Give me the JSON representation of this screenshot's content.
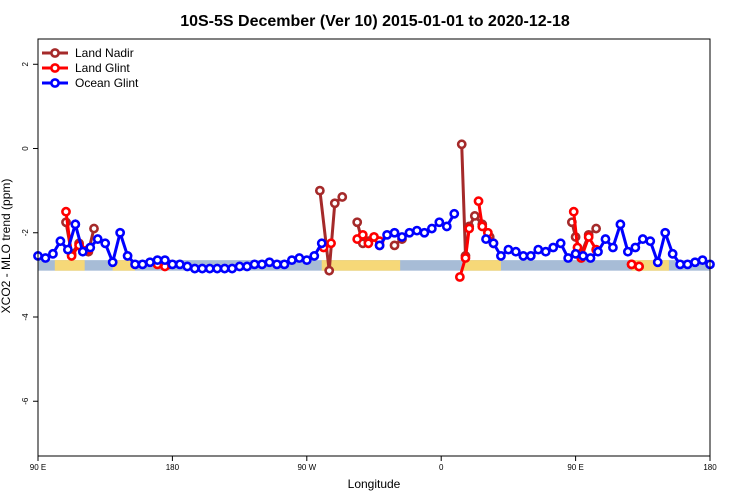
{
  "chart_data": {
    "type": "line",
    "title": "10S-5S December (Ver 10)   2015-01-01 to 2020-12-18",
    "xlabel": "Longitude",
    "ylabel": "XCO2 - MLO trend (ppm)",
    "xlim": [
      -90,
      270
    ],
    "ylim": [
      -7.3,
      2.6
    ],
    "x_ticks": [
      {
        "value": -90,
        "label": "90 E"
      },
      {
        "value": -18,
        "label": "180"
      },
      {
        "value": 54,
        "label": "90 W"
      },
      {
        "value": 126,
        "label": "0"
      },
      {
        "value": 198,
        "label": "90 E"
      },
      {
        "value": 270,
        "label": "180"
      }
    ],
    "y_ticks": [
      {
        "value": 2,
        "label": "2"
      },
      {
        "value": 0,
        "label": "0"
      },
      {
        "value": -2,
        "label": "-2"
      },
      {
        "value": -4,
        "label": "-4"
      },
      {
        "value": -6,
        "label": "-6"
      }
    ],
    "grid": false,
    "legend_position": "top-left",
    "map_strip": {
      "y_range": [
        -2.9,
        -2.65
      ],
      "ocean_color": "#a7bcd6",
      "land_color": "#f6d878",
      "land_segments": [
        [
          -81,
          -65
        ],
        [
          -50,
          -38
        ],
        [
          62,
          104
        ],
        [
          138,
          158
        ],
        [
          228,
          248
        ]
      ]
    },
    "series": [
      {
        "name": "Land Nadir",
        "color": "#a52a2a",
        "segments": [
          [
            [
              -75,
              -1.75
            ],
            [
              -72,
              -2.5
            ],
            [
              -68,
              -2.25
            ],
            [
              -63,
              -2.45
            ],
            [
              -60,
              -1.9
            ]
          ],
          [
            [
              -26,
              -2.7
            ],
            [
              -20,
              -2.75
            ]
          ],
          [
            [
              61,
              -1.0
            ],
            [
              66,
              -2.9
            ],
            [
              69,
              -1.3
            ],
            [
              73,
              -1.15
            ]
          ],
          [
            [
              81,
              -1.75
            ],
            [
              84,
              -2.25
            ],
            [
              87,
              -2.2
            ],
            [
              90,
              -2.1
            ],
            [
              93,
              -2.3
            ]
          ],
          [
            [
              101,
              -2.3
            ],
            [
              105,
              -2.15
            ]
          ],
          [
            [
              137,
              0.1
            ],
            [
              139,
              -2.55
            ],
            [
              141,
              -1.85
            ],
            [
              144,
              -1.6
            ],
            [
              148,
              -1.8
            ],
            [
              152,
              -2.1
            ]
          ],
          [
            [
              196,
              -1.75
            ],
            [
              198,
              -2.1
            ],
            [
              201,
              -2.5
            ],
            [
              205,
              -2.05
            ],
            [
              209,
              -1.9
            ]
          ],
          [
            [
              228,
              -2.75
            ],
            [
              232,
              -2.8
            ]
          ]
        ]
      },
      {
        "name": "Land Glint",
        "color": "#ff0000",
        "segments": [
          [
            [
              -75,
              -1.5
            ],
            [
              -72,
              -2.55
            ],
            [
              -68,
              -2.3
            ],
            [
              -63,
              -2.4
            ]
          ],
          [
            [
              -26,
              -2.75
            ],
            [
              -22,
              -2.8
            ]
          ],
          [
            [
              63,
              -2.35
            ],
            [
              67,
              -2.25
            ]
          ],
          [
            [
              81,
              -2.15
            ],
            [
              84,
              -2.05
            ],
            [
              87,
              -2.25
            ],
            [
              90,
              -2.1
            ],
            [
              93,
              -2.2
            ]
          ],
          [
            [
              136,
              -3.05
            ],
            [
              139,
              -2.6
            ],
            [
              141,
              -1.9
            ]
          ],
          [
            [
              146,
              -1.25
            ],
            [
              148,
              -1.85
            ],
            [
              151,
              -2.0
            ],
            [
              154,
              -2.25
            ]
          ],
          [
            [
              197,
              -1.5
            ],
            [
              199,
              -2.35
            ],
            [
              201,
              -2.6
            ],
            [
              205,
              -2.1
            ],
            [
              209,
              -2.4
            ]
          ],
          [
            [
              228,
              -2.75
            ],
            [
              232,
              -2.8
            ]
          ]
        ]
      },
      {
        "name": "Ocean Glint",
        "color": "#0000ff",
        "segments": [
          [
            [
              -90,
              -2.55
            ],
            [
              -86,
              -2.6
            ],
            [
              -82,
              -2.5
            ],
            [
              -78,
              -2.2
            ],
            [
              -74,
              -2.4
            ],
            [
              -70,
              -1.8
            ],
            [
              -66,
              -2.45
            ],
            [
              -62,
              -2.35
            ],
            [
              -58,
              -2.15
            ],
            [
              -54,
              -2.25
            ],
            [
              -50,
              -2.7
            ],
            [
              -46,
              -2.0
            ],
            [
              -42,
              -2.55
            ],
            [
              -38,
              -2.75
            ],
            [
              -34,
              -2.75
            ],
            [
              -30,
              -2.7
            ],
            [
              -26,
              -2.65
            ],
            [
              -22,
              -2.65
            ],
            [
              -18,
              -2.75
            ],
            [
              -14,
              -2.75
            ],
            [
              -10,
              -2.8
            ],
            [
              -6,
              -2.85
            ],
            [
              -2,
              -2.85
            ],
            [
              2,
              -2.85
            ],
            [
              6,
              -2.85
            ],
            [
              10,
              -2.85
            ],
            [
              14,
              -2.85
            ],
            [
              18,
              -2.8
            ],
            [
              22,
              -2.8
            ],
            [
              26,
              -2.75
            ],
            [
              30,
              -2.75
            ],
            [
              34,
              -2.7
            ],
            [
              38,
              -2.75
            ],
            [
              42,
              -2.75
            ],
            [
              46,
              -2.65
            ],
            [
              50,
              -2.6
            ],
            [
              54,
              -2.65
            ],
            [
              58,
              -2.55
            ],
            [
              62,
              -2.25
            ]
          ],
          [
            [
              93,
              -2.3
            ],
            [
              97,
              -2.05
            ],
            [
              101,
              -2.0
            ],
            [
              105,
              -2.1
            ],
            [
              109,
              -2.0
            ],
            [
              113,
              -1.95
            ],
            [
              117,
              -2.0
            ],
            [
              121,
              -1.9
            ],
            [
              125,
              -1.75
            ],
            [
              129,
              -1.85
            ],
            [
              133,
              -1.55
            ]
          ],
          [
            [
              150,
              -2.15
            ],
            [
              154,
              -2.25
            ],
            [
              158,
              -2.55
            ],
            [
              162,
              -2.4
            ],
            [
              166,
              -2.45
            ],
            [
              170,
              -2.55
            ],
            [
              174,
              -2.55
            ],
            [
              178,
              -2.4
            ],
            [
              182,
              -2.45
            ],
            [
              186,
              -2.35
            ],
            [
              190,
              -2.25
            ],
            [
              194,
              -2.6
            ],
            [
              198,
              -2.5
            ],
            [
              202,
              -2.55
            ],
            [
              206,
              -2.6
            ],
            [
              210,
              -2.45
            ],
            [
              214,
              -2.15
            ],
            [
              218,
              -2.35
            ],
            [
              222,
              -1.8
            ],
            [
              226,
              -2.45
            ],
            [
              230,
              -2.35
            ],
            [
              234,
              -2.15
            ],
            [
              238,
              -2.2
            ],
            [
              242,
              -2.7
            ],
            [
              246,
              -2.0
            ],
            [
              250,
              -2.5
            ],
            [
              254,
              -2.75
            ],
            [
              258,
              -2.75
            ],
            [
              262,
              -2.7
            ],
            [
              266,
              -2.65
            ],
            [
              270,
              -2.75
            ]
          ]
        ]
      }
    ]
  }
}
